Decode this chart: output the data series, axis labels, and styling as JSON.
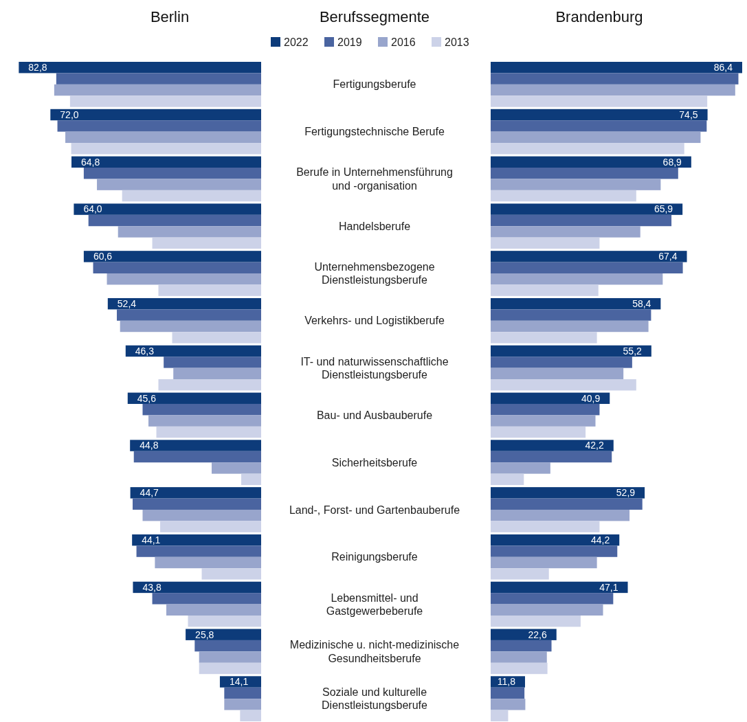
{
  "chart_data": [
    {
      "type": "bar",
      "orientation": "horizontal",
      "title": "Berlin",
      "ylabel": "Berufssegmente",
      "legend": "top",
      "tick_labels": "y",
      "categories": [
        "Fertigungsberufe",
        "Fertigungstechnische Berufe",
        "Berufe in Unternehmensführung und -organisation",
        "Handelsberufe",
        "Unternehmensbezogene Dienstleistungsberufe",
        "Verkehrs- und Logistikberufe",
        "IT- und naturwissenschaftliche Dienstleistungsberufe",
        "Bau- und Ausbauberufe",
        "Sicherheitsberufe",
        "Land-, Forst- und Gartenbauberufe",
        "Reinigungsberufe",
        "Lebensmittel- und Gastgewerbeberufe",
        "Medizinische u. nicht-medizinische Gesundheitsberufe",
        "Soziale und kulturelle Dienstleistungsberufe"
      ],
      "series": [
        {
          "name": "2022",
          "color": "#0d3b7a",
          "values": [
            82.8,
            72.0,
            64.8,
            64.0,
            60.6,
            52.4,
            46.3,
            45.6,
            44.8,
            44.7,
            44.1,
            43.8,
            25.8,
            14.1
          ],
          "value_labels": [
            "82,8",
            "72,0",
            "64,8",
            "64,0",
            "60,6",
            "52,4",
            "46,3",
            "45,6",
            "44,8",
            "44,7",
            "44,1",
            "43,8",
            "25,8",
            "14,1"
          ]
        },
        {
          "name": "2019",
          "color": "#4a64a0",
          "values": [
            70.0,
            69.6,
            60.6,
            59.0,
            57.4,
            49.3,
            33.3,
            40.5,
            43.5,
            43.9,
            42.6,
            37.2,
            22.7,
            12.6
          ]
        },
        {
          "name": "2016",
          "color": "#98a5cc",
          "values": [
            70.7,
            66.9,
            56.1,
            48.9,
            52.7,
            48.2,
            30.0,
            38.5,
            16.9,
            40.5,
            36.3,
            32.4,
            21.2,
            12.6
          ]
        },
        {
          "name": "2013",
          "color": "#ccd2e8",
          "values": [
            65.3,
            64.9,
            47.5,
            37.2,
            35.1,
            30.4,
            35.1,
            35.8,
            6.8,
            34.5,
            20.3,
            25.0,
            21.2,
            7.2
          ]
        }
      ]
    },
    {
      "type": "bar",
      "orientation": "horizontal",
      "title": "Brandenburg",
      "series": [
        {
          "color": "#0d3b7a",
          "values": [
            86.4,
            74.5,
            68.9,
            65.9,
            67.4,
            58.4,
            55.2,
            40.9,
            42.2,
            52.9,
            44.2,
            47.1,
            22.6,
            11.8
          ],
          "value_labels": [
            "86,4",
            "74,5",
            "68,9",
            "65,9",
            "67,4",
            "58,4",
            "55,2",
            "40,9",
            "42,2",
            "52,9",
            "44,2",
            "47,1",
            "22,6",
            "11,8"
          ]
        },
        {
          "color": "#4a64a0",
          "values": [
            85.1,
            74.2,
            64.4,
            62.1,
            66.0,
            55.1,
            48.6,
            37.4,
            41.6,
            52.1,
            43.5,
            42.1,
            20.9,
            11.6
          ]
        },
        {
          "color": "#98a5cc",
          "values": [
            84.0,
            72.1,
            58.4,
            51.4,
            59.1,
            54.2,
            45.6,
            36.0,
            20.5,
            47.7,
            36.5,
            38.6,
            19.3,
            11.9
          ]
        },
        {
          "color": "#ccd2e8",
          "values": [
            74.4,
            66.5,
            50.0,
            37.4,
            37.0,
            36.5,
            50.0,
            32.6,
            11.4,
            37.4,
            20.0,
            30.9,
            19.5,
            6.0
          ]
        }
      ]
    }
  ]
}
